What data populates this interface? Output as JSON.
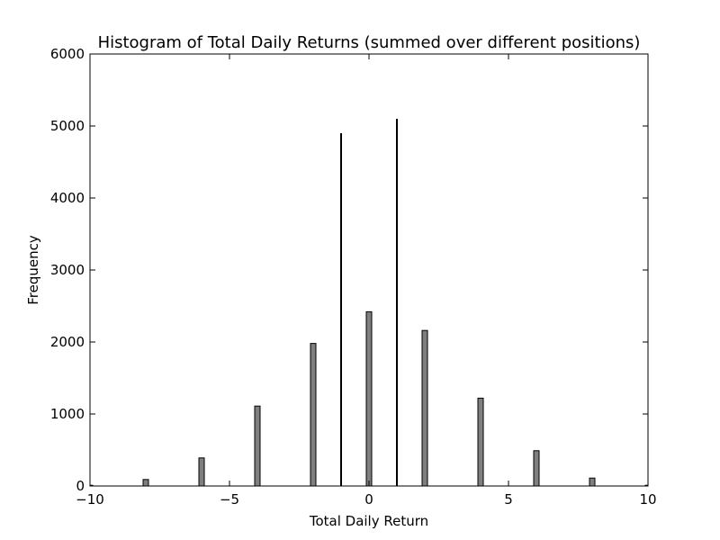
{
  "chart_data": {
    "type": "bar",
    "title": "Histogram of Total Daily Returns (summed over different positions)",
    "xlabel": "Total Daily Return",
    "ylabel": "Frequency",
    "xlim": [
      -10,
      10
    ],
    "ylim": [
      0,
      6000
    ],
    "x_ticks": [
      -10,
      -5,
      0,
      5,
      10
    ],
    "x_tick_labels": [
      "−10",
      "−5",
      "0",
      "5",
      "10"
    ],
    "y_ticks": [
      0,
      1000,
      2000,
      3000,
      4000,
      5000,
      6000
    ],
    "y_tick_labels": [
      "0",
      "1000",
      "2000",
      "3000",
      "4000",
      "5000",
      "6000"
    ],
    "grid": false,
    "bar_color": "#7f7f7f",
    "bar_edge_color": "#000000",
    "x": [
      -10,
      -8,
      -6,
      -4,
      -2,
      -1,
      0,
      1,
      2,
      4,
      6,
      8,
      10
    ],
    "values": [
      10,
      90,
      390,
      1110,
      1980,
      4900,
      2420,
      5100,
      2160,
      1220,
      490,
      110,
      10
    ]
  }
}
